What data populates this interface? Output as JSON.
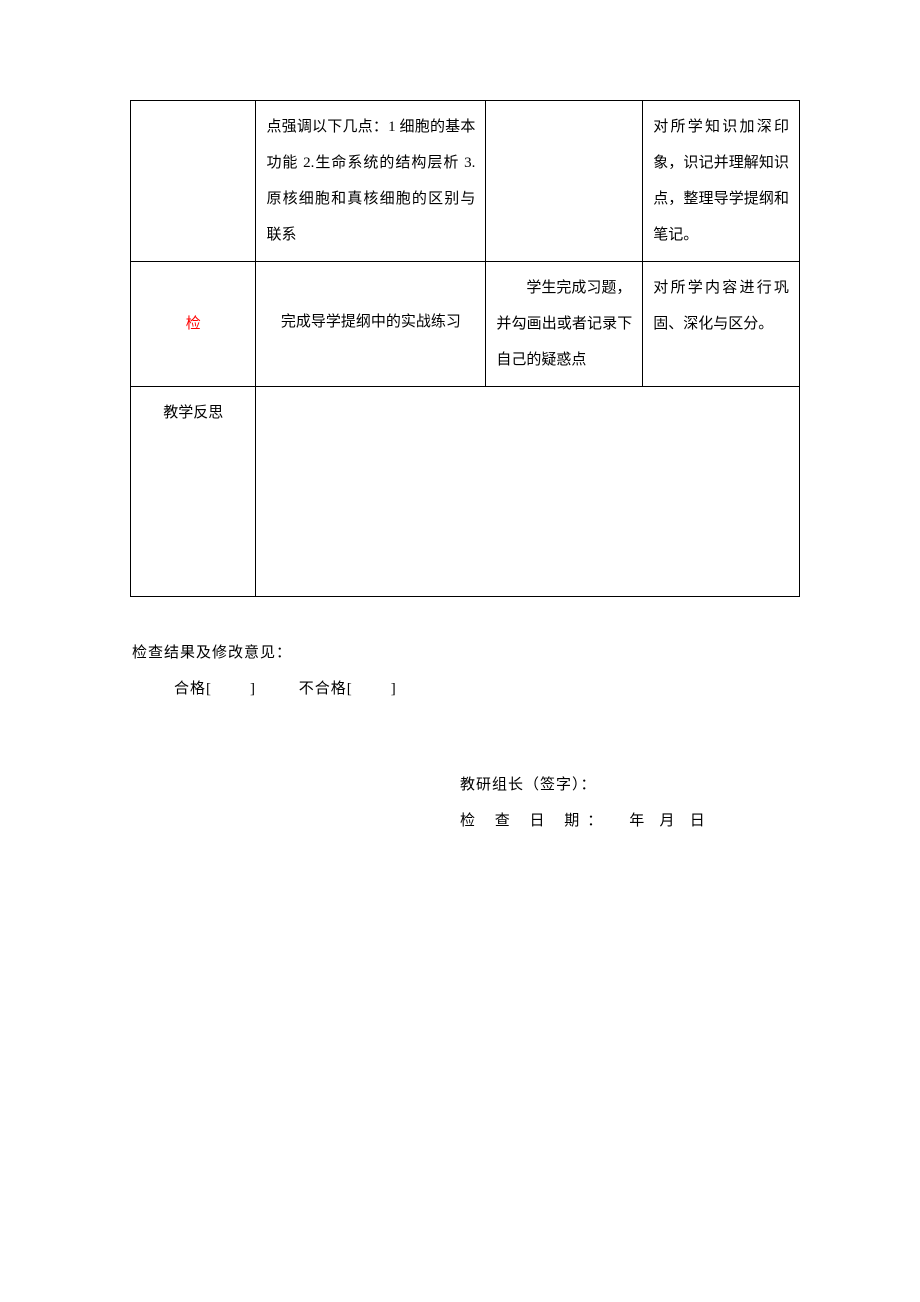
{
  "table": {
    "row1": {
      "col1": "",
      "col2": "点强调以下几点：1 细胞的基本功能 2.生命系统的结构层析 3.原核细胞和真核细胞的区别与联系",
      "col3": "",
      "col4": "对所学知识加深印象，识记并理解知识点，整理导学提纲和笔记。"
    },
    "row2": {
      "col1": "检",
      "col2": "完成导学提纲中的实战练习",
      "col3_line1": "学生完成习题，",
      "col3_line2": "并勾画出或者记录下自己的疑惑点",
      "col4": "对所学内容进行巩固、深化与区分。"
    },
    "row3": {
      "col1": "教学反思",
      "content": ""
    }
  },
  "below": {
    "line1": "检查结果及修改意见：",
    "line2_pass": "合格[",
    "line2_bracket1": "]",
    "line2_fail": "不合格[",
    "line2_bracket2": "]"
  },
  "signature": {
    "line1": "教研组长（签字）：",
    "line2_label": "检 查 日 期：",
    "line2_year": "年",
    "line2_month": "月",
    "line2_day": "日"
  }
}
